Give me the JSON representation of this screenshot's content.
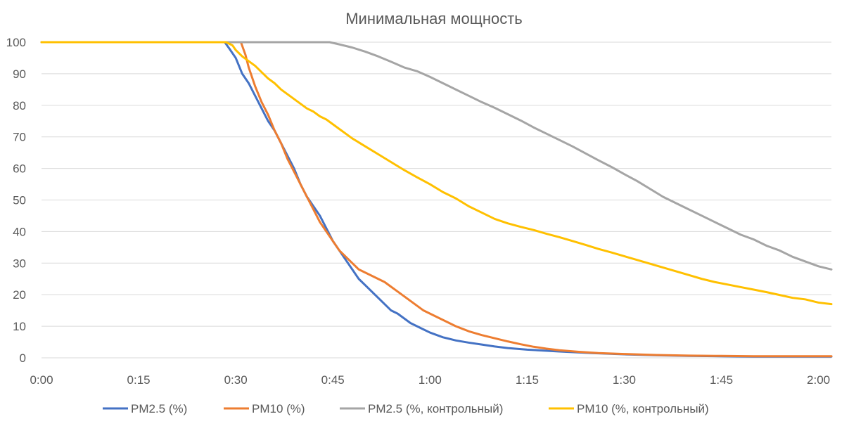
{
  "chart_data": {
    "type": "line",
    "title": "Минимальная мощность",
    "xlabel": "",
    "ylabel": "",
    "x_unit": "minutes",
    "xlim": [
      0,
      122
    ],
    "ylim": [
      0,
      100
    ],
    "x_ticks": [
      {
        "value": 0,
        "label": "0:00"
      },
      {
        "value": 15,
        "label": "0:15"
      },
      {
        "value": 30,
        "label": "0:30"
      },
      {
        "value": 45,
        "label": "0:45"
      },
      {
        "value": 60,
        "label": "1:00"
      },
      {
        "value": 75,
        "label": "1:15"
      },
      {
        "value": 90,
        "label": "1:30"
      },
      {
        "value": 105,
        "label": "1:45"
      },
      {
        "value": 120,
        "label": "2:00"
      }
    ],
    "y_ticks": [
      0,
      10,
      20,
      30,
      40,
      50,
      60,
      70,
      80,
      90,
      100
    ],
    "grid": "horizontal",
    "legend_position": "bottom",
    "series": [
      {
        "name": "PM2.5 (%)",
        "color": "#4472c4",
        "points": [
          [
            0,
            100
          ],
          [
            28.3,
            100
          ],
          [
            29,
            98
          ],
          [
            30,
            95
          ],
          [
            31,
            90
          ],
          [
            32,
            87
          ],
          [
            33,
            83
          ],
          [
            34,
            79
          ],
          [
            35,
            75
          ],
          [
            36,
            72
          ],
          [
            37,
            68
          ],
          [
            38,
            64
          ],
          [
            39,
            60
          ],
          [
            40,
            55
          ],
          [
            41,
            51
          ],
          [
            42,
            48
          ],
          [
            43,
            45
          ],
          [
            44,
            41
          ],
          [
            45,
            37
          ],
          [
            46,
            34
          ],
          [
            47,
            31
          ],
          [
            48,
            28
          ],
          [
            49,
            25
          ],
          [
            50,
            23
          ],
          [
            51,
            21
          ],
          [
            52,
            19
          ],
          [
            53,
            17
          ],
          [
            54,
            15
          ],
          [
            55,
            14
          ],
          [
            56,
            12.5
          ],
          [
            57,
            11
          ],
          [
            58,
            10
          ],
          [
            59,
            9
          ],
          [
            60,
            8
          ],
          [
            62,
            6.5
          ],
          [
            64,
            5.5
          ],
          [
            66,
            4.8
          ],
          [
            68,
            4.2
          ],
          [
            70,
            3.6
          ],
          [
            72,
            3.1
          ],
          [
            75,
            2.6
          ],
          [
            80,
            2
          ],
          [
            85,
            1.5
          ],
          [
            90,
            1.1
          ],
          [
            95,
            0.8
          ],
          [
            100,
            0.6
          ],
          [
            105,
            0.5
          ],
          [
            110,
            0.4
          ],
          [
            115,
            0.4
          ],
          [
            122,
            0.4
          ]
        ]
      },
      {
        "name": "PM10 (%)",
        "color": "#ed7d31",
        "points": [
          [
            0,
            100
          ],
          [
            30.8,
            100
          ],
          [
            31.5,
            96
          ],
          [
            32,
            92
          ],
          [
            33,
            86
          ],
          [
            34,
            81
          ],
          [
            35,
            77
          ],
          [
            36,
            72
          ],
          [
            37,
            68
          ],
          [
            38,
            63
          ],
          [
            39,
            59
          ],
          [
            40,
            55
          ],
          [
            41,
            51
          ],
          [
            42,
            47
          ],
          [
            43,
            43
          ],
          [
            44,
            40
          ],
          [
            45,
            37
          ],
          [
            46,
            34
          ],
          [
            47,
            32
          ],
          [
            48,
            30
          ],
          [
            49,
            28
          ],
          [
            50,
            27
          ],
          [
            51,
            26
          ],
          [
            52,
            25
          ],
          [
            53,
            24
          ],
          [
            54,
            22.5
          ],
          [
            55,
            21
          ],
          [
            56,
            19.5
          ],
          [
            57,
            18
          ],
          [
            58,
            16.5
          ],
          [
            59,
            15
          ],
          [
            60,
            14
          ],
          [
            61,
            13
          ],
          [
            62,
            12
          ],
          [
            63,
            11
          ],
          [
            64,
            10
          ],
          [
            65,
            9.2
          ],
          [
            66,
            8.4
          ],
          [
            68,
            7.2
          ],
          [
            70,
            6.2
          ],
          [
            72,
            5.2
          ],
          [
            74,
            4.3
          ],
          [
            76,
            3.5
          ],
          [
            78,
            2.9
          ],
          [
            80,
            2.4
          ],
          [
            83,
            1.9
          ],
          [
            86,
            1.5
          ],
          [
            90,
            1.2
          ],
          [
            95,
            0.9
          ],
          [
            100,
            0.7
          ],
          [
            105,
            0.6
          ],
          [
            110,
            0.5
          ],
          [
            115,
            0.5
          ],
          [
            122,
            0.5
          ]
        ]
      },
      {
        "name": "PM2.5 (%, контрольный)",
        "color": "#a5a5a5",
        "points": [
          [
            0,
            100
          ],
          [
            44.5,
            100
          ],
          [
            46,
            99.3
          ],
          [
            48,
            98.3
          ],
          [
            50,
            97
          ],
          [
            52,
            95.5
          ],
          [
            54,
            93.8
          ],
          [
            56,
            92
          ],
          [
            58,
            90.8
          ],
          [
            60,
            89
          ],
          [
            62,
            87
          ],
          [
            64,
            85
          ],
          [
            66,
            83
          ],
          [
            68,
            81
          ],
          [
            70,
            79.2
          ],
          [
            72,
            77.2
          ],
          [
            74,
            75.2
          ],
          [
            76,
            73
          ],
          [
            78,
            71
          ],
          [
            80,
            69
          ],
          [
            82,
            67
          ],
          [
            84,
            64.8
          ],
          [
            86,
            62.6
          ],
          [
            88,
            60.5
          ],
          [
            90,
            58.2
          ],
          [
            92,
            56
          ],
          [
            94,
            53.5
          ],
          [
            96,
            51
          ],
          [
            98,
            49
          ],
          [
            100,
            47
          ],
          [
            102,
            45
          ],
          [
            104,
            43
          ],
          [
            106,
            41
          ],
          [
            108,
            39
          ],
          [
            110,
            37.5
          ],
          [
            112,
            35.5
          ],
          [
            114,
            34
          ],
          [
            116,
            32
          ],
          [
            118,
            30.5
          ],
          [
            120,
            29
          ],
          [
            122,
            28
          ]
        ]
      },
      {
        "name": "PM10 (%, контрольный)",
        "color": "#ffc000",
        "points": [
          [
            0,
            100
          ],
          [
            28.5,
            100
          ],
          [
            29.5,
            99
          ],
          [
            30,
            97.5
          ],
          [
            31,
            95.5
          ],
          [
            32,
            94
          ],
          [
            33,
            92.5
          ],
          [
            34,
            90.5
          ],
          [
            35,
            88.5
          ],
          [
            36,
            87
          ],
          [
            37,
            85
          ],
          [
            38,
            83.5
          ],
          [
            39,
            82
          ],
          [
            40,
            80.5
          ],
          [
            41,
            79
          ],
          [
            42,
            78
          ],
          [
            43,
            76.5
          ],
          [
            44,
            75.5
          ],
          [
            45,
            74
          ],
          [
            46,
            72.5
          ],
          [
            47,
            71
          ],
          [
            48,
            69.5
          ],
          [
            50,
            67
          ],
          [
            52,
            64.5
          ],
          [
            54,
            62
          ],
          [
            56,
            59.5
          ],
          [
            58,
            57.2
          ],
          [
            60,
            55
          ],
          [
            62,
            52.5
          ],
          [
            64,
            50.5
          ],
          [
            66,
            48
          ],
          [
            68,
            46
          ],
          [
            70,
            44
          ],
          [
            72,
            42.6
          ],
          [
            74,
            41.5
          ],
          [
            76,
            40.5
          ],
          [
            78,
            39.3
          ],
          [
            80,
            38.2
          ],
          [
            82,
            37
          ],
          [
            84,
            35.8
          ],
          [
            86,
            34.5
          ],
          [
            88,
            33.4
          ],
          [
            90,
            32.2
          ],
          [
            92,
            31
          ],
          [
            94,
            29.8
          ],
          [
            96,
            28.6
          ],
          [
            98,
            27.4
          ],
          [
            100,
            26.2
          ],
          [
            102,
            25
          ],
          [
            104,
            24
          ],
          [
            106,
            23.2
          ],
          [
            108,
            22.4
          ],
          [
            110,
            21.6
          ],
          [
            112,
            20.8
          ],
          [
            114,
            19.9
          ],
          [
            116,
            19
          ],
          [
            118,
            18.5
          ],
          [
            120,
            17.5
          ],
          [
            122,
            17
          ]
        ]
      }
    ]
  }
}
